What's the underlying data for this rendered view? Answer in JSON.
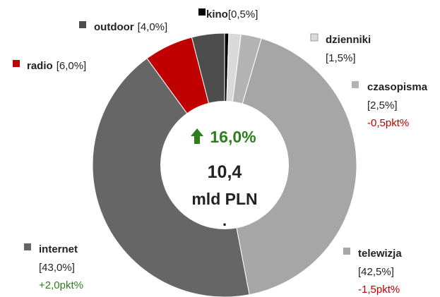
{
  "chart_data": {
    "type": "donut",
    "categories": [
      "kino",
      "dzienniki",
      "czasopisma",
      "telewizja",
      "internet",
      "radio",
      "outdoor"
    ],
    "values": [
      0.5,
      1.5,
      2.5,
      42.5,
      43.0,
      6.0,
      4.0
    ],
    "value_labels": [
      "[0,5%]",
      "[1,5%]",
      "[2,5%]",
      "[42,5%]",
      "[43,0%]",
      "[6,0%]",
      "[4,0%]"
    ],
    "change_labels": [
      null,
      null,
      "-0,5pkt%",
      "-1,5pkt%",
      "+2,0pkt%",
      null,
      null
    ],
    "colors": [
      "#000000",
      "#d9d9d9",
      "#b3b3b3",
      "#a6a6a6",
      "#666666",
      "#c00000",
      "#4d4d4d"
    ],
    "center": {
      "growth": "16,0%",
      "amount": "10,4",
      "unit": "mld PLN",
      "note": "."
    }
  }
}
